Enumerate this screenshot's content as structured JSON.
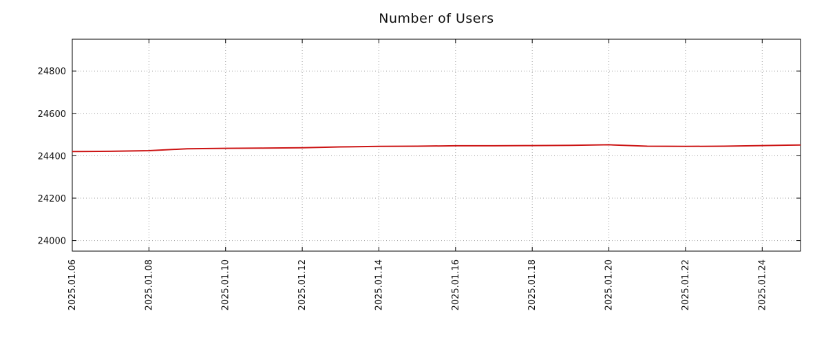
{
  "title": "Number of Users",
  "colors": {
    "series": "#cc1414",
    "grid": "#9c9c9c",
    "border": "#000000",
    "text": "#111111",
    "background": "#ffffff"
  },
  "chart_data": {
    "type": "line",
    "title": "Number of Users",
    "xlabel": "",
    "ylabel": "",
    "x": [
      "2025.01.06",
      "2025.01.07",
      "2025.01.08",
      "2025.01.09",
      "2025.01.10",
      "2025.01.11",
      "2025.01.12",
      "2025.01.13",
      "2025.01.14",
      "2025.01.15",
      "2025.01.16",
      "2025.01.17",
      "2025.01.18",
      "2025.01.19",
      "2025.01.20",
      "2025.01.21",
      "2025.01.22",
      "2025.01.23",
      "2025.01.24",
      "2025.01.25"
    ],
    "values": [
      24420,
      24421,
      24424,
      24433,
      24435,
      24436,
      24438,
      24442,
      24444,
      24445,
      24447,
      24447,
      24448,
      24449,
      24452,
      24445,
      24444,
      24445,
      24448,
      24451
    ],
    "xticks": [
      "2025.01.06",
      "2025.01.08",
      "2025.01.10",
      "2025.01.12",
      "2025.01.14",
      "2025.01.16",
      "2025.01.18",
      "2025.01.20",
      "2025.01.22",
      "2025.01.24"
    ],
    "yticks": [
      24000,
      24200,
      24400,
      24600,
      24800
    ],
    "ylim": [
      23950,
      24950
    ],
    "grid": true,
    "grid_style": "dotted",
    "legend": "none",
    "line_width": 2
  }
}
